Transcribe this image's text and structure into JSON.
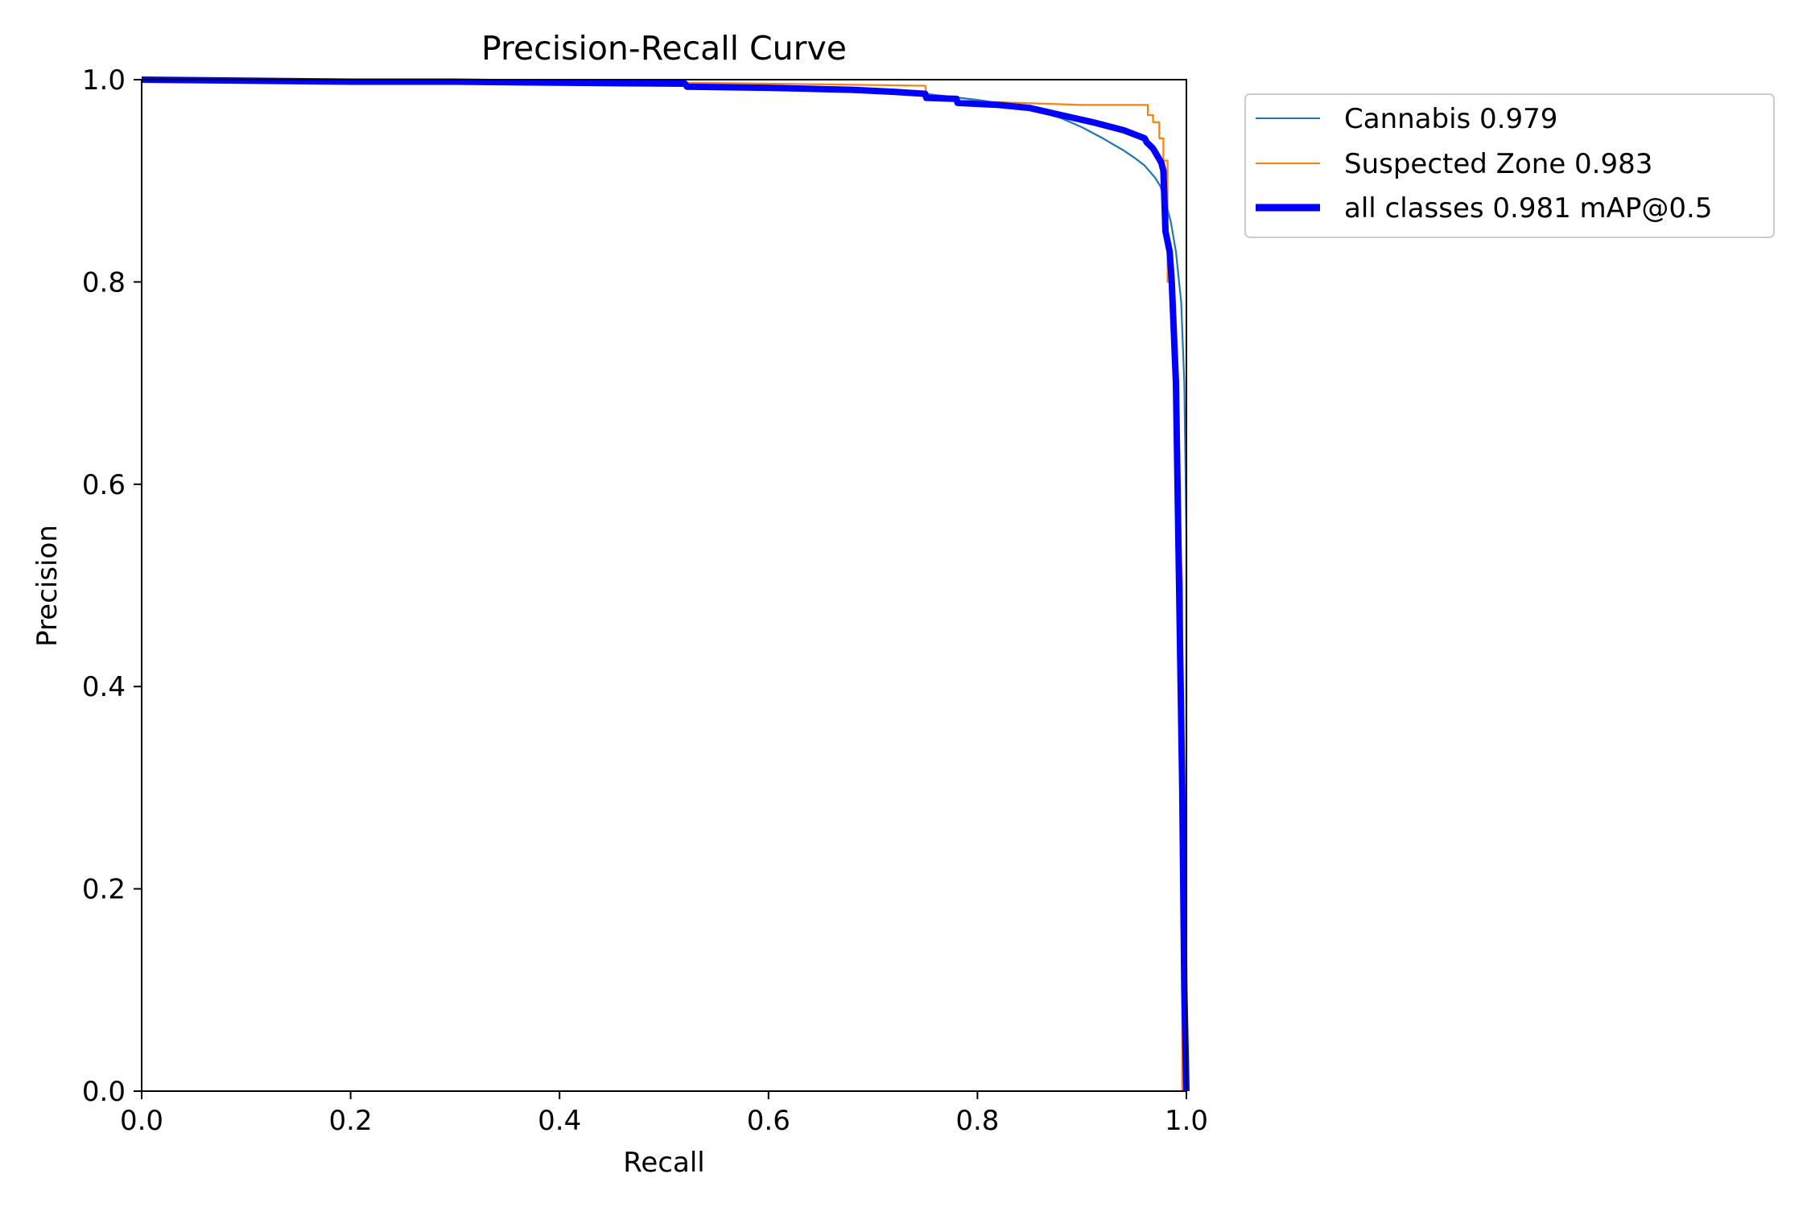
{
  "chart_data": {
    "type": "line",
    "title": "Precision-Recall Curve",
    "xlabel": "Recall",
    "ylabel": "Precision",
    "xlim": [
      0.0,
      1.0
    ],
    "ylim": [
      0.0,
      1.0
    ],
    "xticks": [
      "0.0",
      "0.2",
      "0.4",
      "0.6",
      "0.8",
      "1.0"
    ],
    "yticks": [
      "0.0",
      "0.2",
      "0.4",
      "0.6",
      "0.8",
      "1.0"
    ],
    "grid": false,
    "legend_position": "outside-top-right",
    "series": [
      {
        "name": "Cannabis 0.979",
        "color": "#1f77b4",
        "style": "thin",
        "x": [
          0.0,
          0.1,
          0.2,
          0.3,
          0.4,
          0.5,
          0.52,
          0.6,
          0.65,
          0.7,
          0.75,
          0.8,
          0.84,
          0.86,
          0.88,
          0.9,
          0.92,
          0.94,
          0.95,
          0.96,
          0.97,
          0.975,
          0.98,
          0.985,
          0.99,
          0.995,
          0.998,
          1.0,
          1.0
        ],
        "y": [
          1.0,
          0.999,
          0.998,
          0.998,
          0.997,
          0.996,
          0.994,
          0.993,
          0.992,
          0.99,
          0.986,
          0.98,
          0.974,
          0.968,
          0.962,
          0.953,
          0.942,
          0.93,
          0.923,
          0.915,
          0.903,
          0.895,
          0.88,
          0.86,
          0.83,
          0.78,
          0.7,
          0.55,
          0.0
        ]
      },
      {
        "name": "Suspected Zone 0.983",
        "color": "#ff7f0e",
        "style": "thin",
        "x": [
          0.0,
          0.3,
          0.5,
          0.52,
          0.6,
          0.75,
          0.752,
          0.9,
          0.963,
          0.963,
          0.968,
          0.968,
          0.974,
          0.974,
          0.978,
          0.978,
          0.982,
          0.982,
          0.984,
          0.996,
          0.996,
          1.0
        ],
        "y": [
          1.0,
          0.999,
          0.998,
          0.997,
          0.996,
          0.994,
          0.98,
          0.975,
          0.975,
          0.965,
          0.965,
          0.958,
          0.958,
          0.942,
          0.942,
          0.92,
          0.92,
          0.8,
          0.8,
          0.5,
          0.0,
          0.0
        ]
      },
      {
        "name": "all classes 0.981 mAP@0.5",
        "color": "#0000ff",
        "style": "thick",
        "x": [
          0.0,
          0.1,
          0.2,
          0.3,
          0.4,
          0.52,
          0.522,
          0.6,
          0.68,
          0.72,
          0.75,
          0.751,
          0.78,
          0.781,
          0.82,
          0.85,
          0.88,
          0.91,
          0.94,
          0.96,
          0.962,
          0.968,
          0.972,
          0.976,
          0.978,
          0.98,
          0.982,
          0.984,
          0.986,
          0.99,
          0.993,
          0.996,
          0.998,
          1.0
        ],
        "y": [
          1.0,
          0.999,
          0.998,
          0.998,
          0.997,
          0.996,
          0.993,
          0.992,
          0.99,
          0.988,
          0.986,
          0.982,
          0.981,
          0.977,
          0.975,
          0.972,
          0.965,
          0.958,
          0.95,
          0.942,
          0.938,
          0.932,
          0.925,
          0.918,
          0.91,
          0.85,
          0.84,
          0.83,
          0.8,
          0.7,
          0.5,
          0.3,
          0.1,
          0.0
        ]
      }
    ]
  }
}
